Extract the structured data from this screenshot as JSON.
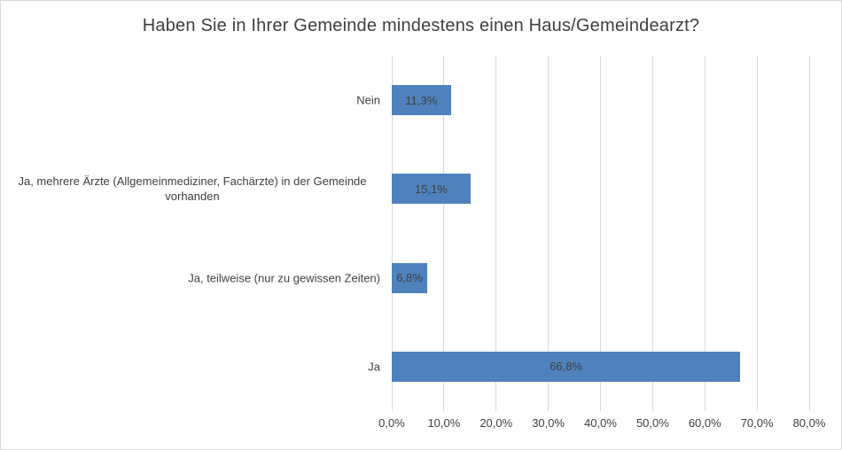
{
  "chart_data": {
    "type": "bar",
    "orientation": "horizontal",
    "title": "Haben Sie in Ihrer Gemeinde mindestens einen Haus/Gemeindearzt?",
    "categories": [
      "Nein",
      "Ja, mehrere Ärzte (Allgemeinmediziner, Fachärzte) in der Gemeinde vorhanden",
      "Ja, teilweise (nur zu gewissen Zeiten)",
      "Ja"
    ],
    "values": [
      11.3,
      15.1,
      6.8,
      66.8
    ],
    "value_labels": [
      "11,3%",
      "15,1%",
      "6,8%",
      "66,8%"
    ],
    "xlabel": "",
    "ylabel": "",
    "xlim": [
      0,
      80
    ],
    "x_tick_labels": [
      "0,0%",
      "10,0%",
      "20,0%",
      "30,0%",
      "40,0%",
      "50,0%",
      "60,0%",
      "70,0%",
      "80,0%"
    ],
    "grid": "vertical",
    "legend": "none",
    "colors": {
      "bar": "#4F81BD",
      "gridline": "#D9D9D9",
      "border": "#D8D8D8",
      "text": "#404040",
      "title": "#3F3F3F"
    }
  }
}
